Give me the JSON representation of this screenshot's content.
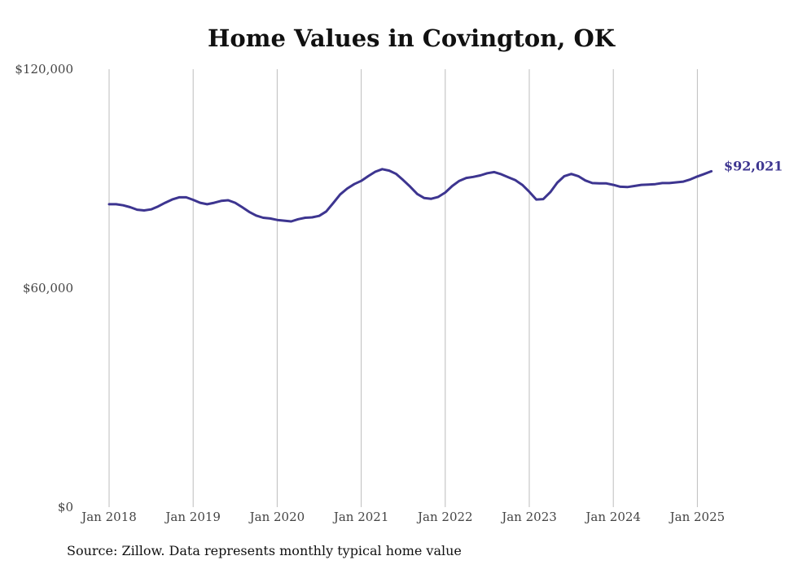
{
  "chart_data": {
    "type": "line",
    "title": "Home Values in Covington, OK",
    "xlabel": "",
    "ylabel": "",
    "x_ticks": [
      "Jan 2018",
      "Jan 2019",
      "Jan 2020",
      "Jan 2021",
      "Jan 2022",
      "Jan 2023",
      "Jan 2024",
      "Jan 2025"
    ],
    "y_ticks": [
      "$0",
      "$60,000",
      "$120,000"
    ],
    "ylim": [
      0,
      120000
    ],
    "grid": "vertical",
    "series": [
      {
        "color": "#3d3590",
        "end_label": "$92,021",
        "points": [
          {
            "x": "2018-01",
            "y": 83000
          },
          {
            "x": "2018-02",
            "y": 83000
          },
          {
            "x": "2018-03",
            "y": 82700
          },
          {
            "x": "2018-04",
            "y": 82200
          },
          {
            "x": "2018-05",
            "y": 81500
          },
          {
            "x": "2018-06",
            "y": 81300
          },
          {
            "x": "2018-07",
            "y": 81600
          },
          {
            "x": "2018-08",
            "y": 82400
          },
          {
            "x": "2018-09",
            "y": 83400
          },
          {
            "x": "2018-10",
            "y": 84300
          },
          {
            "x": "2018-11",
            "y": 84900
          },
          {
            "x": "2018-12",
            "y": 84900
          },
          {
            "x": "2019-01",
            "y": 84200
          },
          {
            "x": "2019-02",
            "y": 83400
          },
          {
            "x": "2019-03",
            "y": 83000
          },
          {
            "x": "2019-04",
            "y": 83400
          },
          {
            "x": "2019-05",
            "y": 83900
          },
          {
            "x": "2019-06",
            "y": 84100
          },
          {
            "x": "2019-07",
            "y": 83400
          },
          {
            "x": "2019-08",
            "y": 82200
          },
          {
            "x": "2019-09",
            "y": 80900
          },
          {
            "x": "2019-10",
            "y": 79900
          },
          {
            "x": "2019-11",
            "y": 79300
          },
          {
            "x": "2019-12",
            "y": 79100
          },
          {
            "x": "2020-01",
            "y": 78700
          },
          {
            "x": "2020-02",
            "y": 78500
          },
          {
            "x": "2020-03",
            "y": 78300
          },
          {
            "x": "2020-04",
            "y": 78900
          },
          {
            "x": "2020-05",
            "y": 79300
          },
          {
            "x": "2020-06",
            "y": 79400
          },
          {
            "x": "2020-07",
            "y": 79800
          },
          {
            "x": "2020-08",
            "y": 81000
          },
          {
            "x": "2020-09",
            "y": 83300
          },
          {
            "x": "2020-10",
            "y": 85700
          },
          {
            "x": "2020-11",
            "y": 87300
          },
          {
            "x": "2020-12",
            "y": 88500
          },
          {
            "x": "2021-01",
            "y": 89400
          },
          {
            "x": "2021-02",
            "y": 90700
          },
          {
            "x": "2021-03",
            "y": 91900
          },
          {
            "x": "2021-04",
            "y": 92600
          },
          {
            "x": "2021-05",
            "y": 92200
          },
          {
            "x": "2021-06",
            "y": 91300
          },
          {
            "x": "2021-07",
            "y": 89600
          },
          {
            "x": "2021-08",
            "y": 87800
          },
          {
            "x": "2021-09",
            "y": 85800
          },
          {
            "x": "2021-10",
            "y": 84700
          },
          {
            "x": "2021-11",
            "y": 84500
          },
          {
            "x": "2021-12",
            "y": 85000
          },
          {
            "x": "2022-01",
            "y": 86200
          },
          {
            "x": "2022-02",
            "y": 88000
          },
          {
            "x": "2022-03",
            "y": 89400
          },
          {
            "x": "2022-04",
            "y": 90200
          },
          {
            "x": "2022-05",
            "y": 90500
          },
          {
            "x": "2022-06",
            "y": 90900
          },
          {
            "x": "2022-07",
            "y": 91500
          },
          {
            "x": "2022-08",
            "y": 91800
          },
          {
            "x": "2022-09",
            "y": 91200
          },
          {
            "x": "2022-10",
            "y": 90400
          },
          {
            "x": "2022-11",
            "y": 89600
          },
          {
            "x": "2022-12",
            "y": 88300
          },
          {
            "x": "2023-01",
            "y": 86400
          },
          {
            "x": "2023-02",
            "y": 84300
          },
          {
            "x": "2023-03",
            "y": 84400
          },
          {
            "x": "2023-04",
            "y": 86300
          },
          {
            "x": "2023-05",
            "y": 88900
          },
          {
            "x": "2023-06",
            "y": 90700
          },
          {
            "x": "2023-07",
            "y": 91300
          },
          {
            "x": "2023-08",
            "y": 90700
          },
          {
            "x": "2023-09",
            "y": 89500
          },
          {
            "x": "2023-10",
            "y": 88800
          },
          {
            "x": "2023-11",
            "y": 88700
          },
          {
            "x": "2023-12",
            "y": 88700
          },
          {
            "x": "2024-01",
            "y": 88300
          },
          {
            "x": "2024-02",
            "y": 87800
          },
          {
            "x": "2024-03",
            "y": 87700
          },
          {
            "x": "2024-04",
            "y": 88000
          },
          {
            "x": "2024-05",
            "y": 88300
          },
          {
            "x": "2024-06",
            "y": 88400
          },
          {
            "x": "2024-07",
            "y": 88500
          },
          {
            "x": "2024-08",
            "y": 88800
          },
          {
            "x": "2024-09",
            "y": 88800
          },
          {
            "x": "2024-10",
            "y": 89000
          },
          {
            "x": "2024-11",
            "y": 89200
          },
          {
            "x": "2024-12",
            "y": 89800
          },
          {
            "x": "2025-01",
            "y": 90600
          },
          {
            "x": "2025-02",
            "y": 91300
          },
          {
            "x": "2025-03",
            "y": 92021
          }
        ]
      }
    ],
    "source": "Source: Zillow. Data represents monthly typical home value"
  }
}
